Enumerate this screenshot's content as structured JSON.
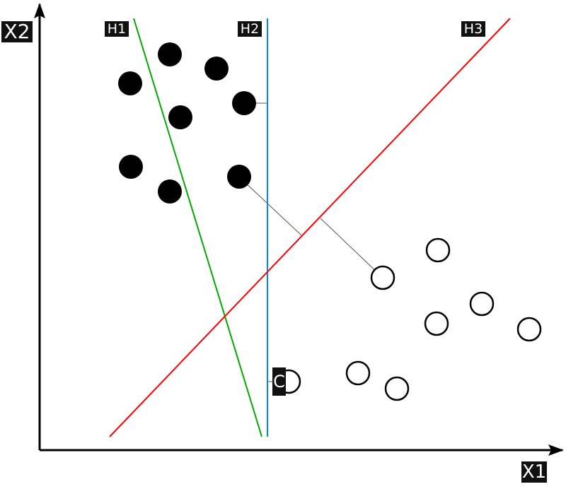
{
  "labels": {
    "x_axis": "X1",
    "y_axis": "X2",
    "h1": "H1",
    "h2": "H2",
    "h3": "H3",
    "point_c": "C"
  },
  "colors": {
    "h1": "#00aa00",
    "h2": "#0088ff",
    "h3": "#ff0000",
    "axis": "#000000",
    "distance_line": "#555555",
    "filled_class": "#000000",
    "open_class": "#ffffff"
  },
  "classes": [
    {
      "kind": "filled",
      "count": 8
    },
    {
      "kind": "open",
      "count": 8
    }
  ]
}
